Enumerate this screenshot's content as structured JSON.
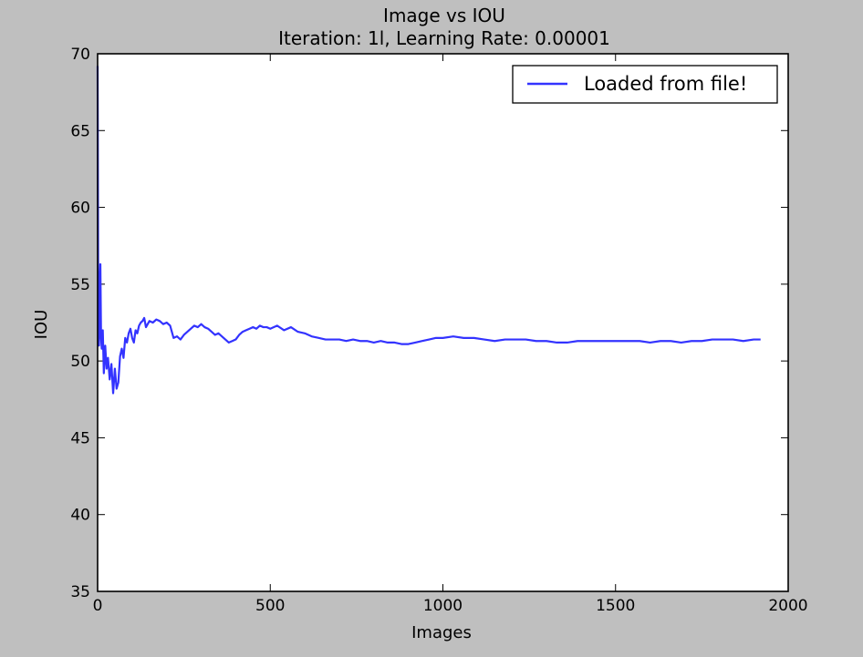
{
  "chart_data": {
    "type": "line",
    "title": "Image vs IOU",
    "subtitle": "Iteration: 1l, Learning Rate: 0.00001",
    "xlabel": "Images",
    "ylabel": "IOU",
    "xlim": [
      0,
      2000
    ],
    "ylim": [
      35,
      70
    ],
    "xticks": [
      0,
      500,
      1000,
      1500,
      2000
    ],
    "yticks": [
      35,
      40,
      45,
      50,
      55,
      60,
      65,
      70
    ],
    "grid": false,
    "legend_position": "top-right",
    "series": [
      {
        "name": "Loaded from file!",
        "color": "#3333ff",
        "x": [
          0,
          2,
          4,
          6,
          8,
          10,
          12,
          15,
          18,
          22,
          26,
          30,
          35,
          40,
          45,
          50,
          55,
          60,
          65,
          70,
          75,
          80,
          85,
          90,
          95,
          100,
          105,
          110,
          115,
          120,
          125,
          130,
          135,
          140,
          145,
          150,
          160,
          170,
          180,
          190,
          200,
          210,
          220,
          230,
          240,
          250,
          260,
          270,
          280,
          290,
          300,
          310,
          320,
          330,
          340,
          350,
          360,
          370,
          380,
          390,
          400,
          410,
          420,
          430,
          440,
          450,
          460,
          470,
          480,
          490,
          500,
          520,
          540,
          560,
          580,
          600,
          620,
          640,
          660,
          680,
          700,
          720,
          740,
          760,
          780,
          800,
          820,
          840,
          860,
          880,
          900,
          920,
          940,
          960,
          980,
          1000,
          1030,
          1060,
          1090,
          1120,
          1150,
          1180,
          1210,
          1240,
          1270,
          1300,
          1330,
          1360,
          1390,
          1420,
          1450,
          1480,
          1510,
          1540,
          1570,
          1600,
          1630,
          1660,
          1690,
          1720,
          1750,
          1780,
          1810,
          1840,
          1870,
          1900,
          1920
        ],
        "y": [
          69.2,
          52.5,
          51.0,
          54.5,
          56.3,
          51.5,
          50.8,
          52.0,
          49.2,
          51.0,
          49.5,
          50.2,
          48.8,
          49.8,
          47.9,
          49.5,
          48.2,
          48.6,
          50.3,
          50.8,
          50.2,
          51.5,
          51.2,
          51.8,
          52.1,
          51.5,
          51.2,
          52.0,
          51.8,
          52.3,
          52.5,
          52.6,
          52.8,
          52.2,
          52.4,
          52.6,
          52.5,
          52.7,
          52.6,
          52.4,
          52.5,
          52.3,
          51.5,
          51.6,
          51.4,
          51.7,
          51.9,
          52.1,
          52.3,
          52.2,
          52.4,
          52.2,
          52.1,
          51.9,
          51.7,
          51.8,
          51.6,
          51.4,
          51.2,
          51.3,
          51.4,
          51.7,
          51.9,
          52.0,
          52.1,
          52.2,
          52.1,
          52.3,
          52.2,
          52.2,
          52.1,
          52.3,
          52.0,
          52.2,
          51.9,
          51.8,
          51.6,
          51.5,
          51.4,
          51.4,
          51.4,
          51.3,
          51.4,
          51.3,
          51.3,
          51.2,
          51.3,
          51.2,
          51.2,
          51.1,
          51.1,
          51.2,
          51.3,
          51.4,
          51.5,
          51.5,
          51.6,
          51.5,
          51.5,
          51.4,
          51.3,
          51.4,
          51.4,
          51.4,
          51.3,
          51.3,
          51.2,
          51.2,
          51.3,
          51.3,
          51.3,
          51.3,
          51.3,
          51.3,
          51.3,
          51.2,
          51.3,
          51.3,
          51.2,
          51.3,
          51.3,
          51.4,
          51.4,
          51.4,
          51.3,
          51.4,
          51.4
        ]
      }
    ]
  }
}
